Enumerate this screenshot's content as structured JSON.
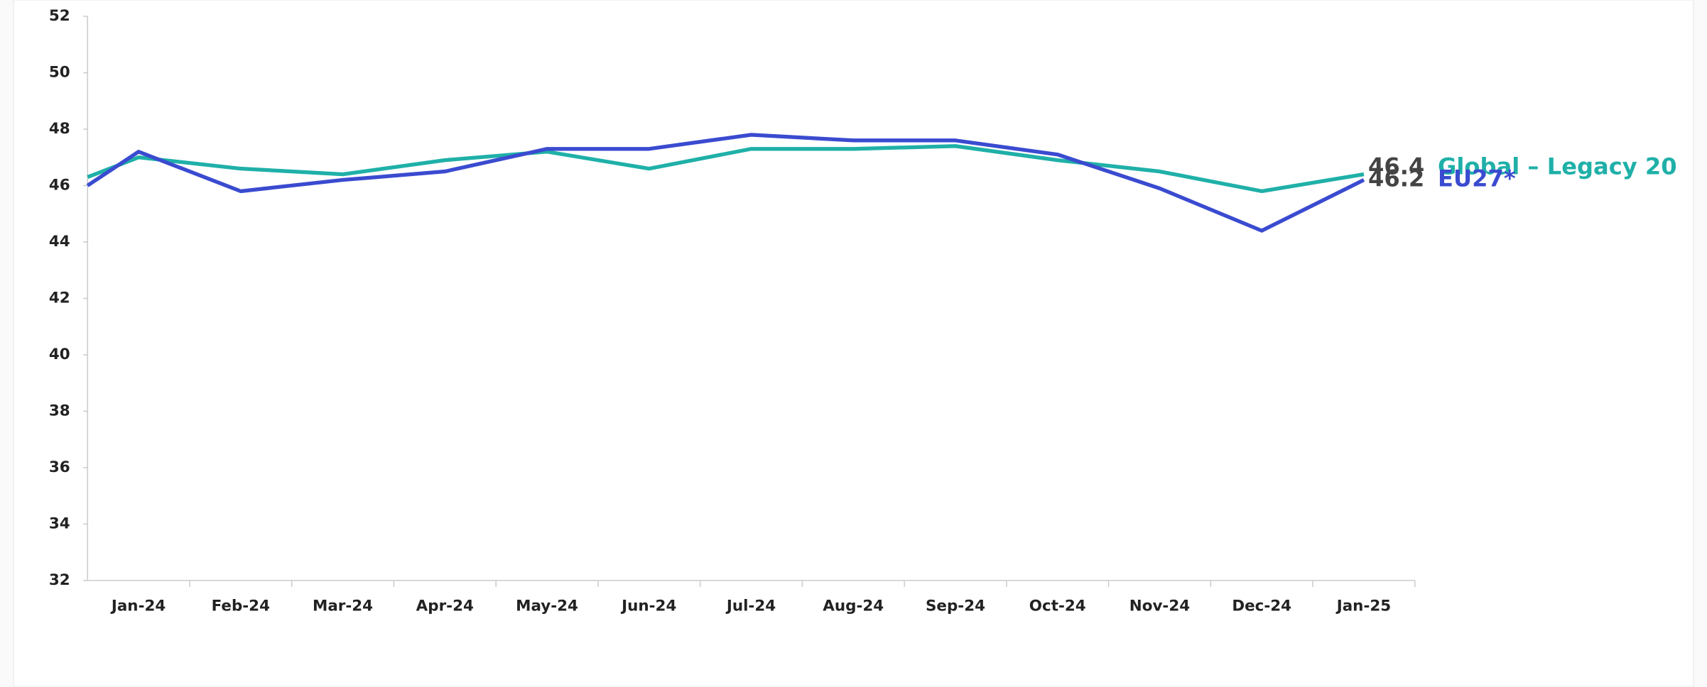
{
  "chart_data": {
    "type": "line",
    "categories": [
      null,
      "Jan-24",
      "Feb-24",
      "Mar-24",
      "Apr-24",
      "May-24",
      "Jun-24",
      "Jul-24",
      "Aug-24",
      "Sep-24",
      "Oct-24",
      "Nov-24",
      "Dec-24",
      "Jan-25"
    ],
    "series": [
      {
        "name": "Global – Legacy 20",
        "color": "#1fb0a8",
        "values": [
          46.3,
          47.0,
          46.6,
          46.4,
          46.9,
          47.2,
          46.6,
          47.3,
          47.3,
          47.4,
          46.9,
          46.5,
          45.8,
          46.4
        ]
      },
      {
        "name": "EU27*",
        "color": "#3a4bd0",
        "values": [
          46.0,
          47.2,
          45.8,
          46.2,
          46.5,
          47.3,
          47.3,
          47.8,
          47.6,
          47.6,
          47.1,
          45.9,
          44.4,
          46.2
        ]
      }
    ],
    "ylim": [
      32,
      52
    ],
    "yticks": [
      32,
      34,
      36,
      38,
      40,
      42,
      44,
      46,
      48,
      50,
      52
    ],
    "grid": false
  }
}
